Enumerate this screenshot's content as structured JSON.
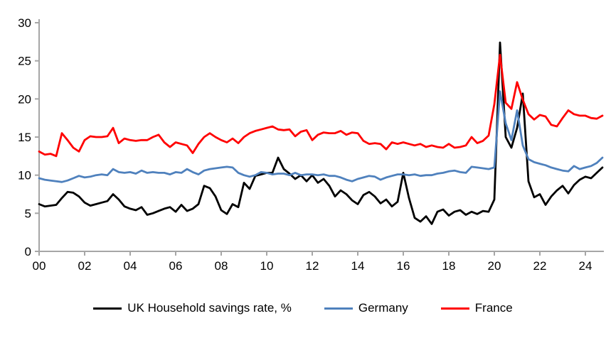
{
  "chart_data": {
    "type": "line",
    "title": "",
    "xlabel": "",
    "ylabel": "",
    "x_start": "2000Q1",
    "frequency": "quarterly",
    "ylim": [
      0,
      30
    ],
    "y_ticks": [
      "0",
      "5",
      "10",
      "15",
      "20",
      "25",
      "30"
    ],
    "x_tick_labels": [
      "00",
      "02",
      "04",
      "06",
      "08",
      "10",
      "12",
      "14",
      "16",
      "18",
      "20",
      "22",
      "24"
    ],
    "grid": false,
    "legend_position": "bottom",
    "axis_color": "#A6A6A6",
    "series": [
      {
        "name": "UK Household savings rate, %",
        "color": "#000000",
        "values": [
          6.2,
          5.9,
          6.0,
          6.1,
          7.0,
          7.8,
          7.7,
          7.2,
          6.4,
          6.0,
          6.2,
          6.4,
          6.6,
          7.5,
          6.8,
          5.9,
          5.6,
          5.4,
          5.8,
          4.8,
          5.0,
          5.3,
          5.6,
          5.8,
          5.2,
          6.1,
          5.3,
          5.6,
          6.2,
          8.6,
          8.3,
          7.2,
          5.4,
          4.9,
          6.2,
          5.8,
          9.0,
          8.2,
          9.9,
          10.1,
          10.3,
          10.3,
          12.3,
          10.8,
          10.2,
          9.5,
          10.0,
          9.2,
          10.0,
          9.0,
          9.5,
          8.6,
          7.2,
          8.0,
          7.5,
          6.7,
          6.2,
          7.4,
          7.8,
          7.2,
          6.3,
          6.8,
          5.9,
          6.5,
          10.3,
          7.0,
          4.4,
          3.9,
          4.6,
          3.6,
          5.2,
          5.5,
          4.7,
          5.2,
          5.4,
          4.8,
          5.2,
          4.9,
          5.3,
          5.2,
          6.8,
          27.4,
          15.0,
          13.6,
          16.2,
          20.7,
          9.2,
          7.1,
          7.5,
          6.1,
          7.2,
          8.0,
          8.6,
          7.6,
          8.7,
          9.4,
          9.8,
          9.6,
          10.3,
          11.0
        ]
      },
      {
        "name": "Germany",
        "color": "#4F81BD",
        "values": [
          9.6,
          9.4,
          9.3,
          9.2,
          9.1,
          9.3,
          9.6,
          9.9,
          9.7,
          9.8,
          10.0,
          10.1,
          10.0,
          10.8,
          10.4,
          10.3,
          10.4,
          10.2,
          10.6,
          10.3,
          10.4,
          10.3,
          10.3,
          10.1,
          10.4,
          10.3,
          10.8,
          10.4,
          10.1,
          10.6,
          10.8,
          10.9,
          11.0,
          11.1,
          11.0,
          10.3,
          10.0,
          9.8,
          10.0,
          10.4,
          10.3,
          10.1,
          10.2,
          10.2,
          10.0,
          10.3,
          10.0,
          10.1,
          10.1,
          10.0,
          10.1,
          9.9,
          9.9,
          9.7,
          9.4,
          9.2,
          9.5,
          9.7,
          9.9,
          9.8,
          9.4,
          9.7,
          9.9,
          10.1,
          10.1,
          10.0,
          10.1,
          9.9,
          10.0,
          10.0,
          10.2,
          10.3,
          10.5,
          10.6,
          10.4,
          10.3,
          11.1,
          11.0,
          10.9,
          10.8,
          11.0,
          21.0,
          16.8,
          14.6,
          18.5,
          13.9,
          12.1,
          11.7,
          11.5,
          11.3,
          11.0,
          10.8,
          10.6,
          10.5,
          11.2,
          10.8,
          11.0,
          11.2,
          11.6,
          12.3
        ]
      },
      {
        "name": "France",
        "color": "#FF0000",
        "values": [
          13.1,
          12.7,
          12.8,
          12.5,
          15.5,
          14.6,
          13.6,
          13.1,
          14.6,
          15.1,
          15.0,
          15.0,
          15.1,
          16.2,
          14.2,
          14.8,
          14.6,
          14.5,
          14.6,
          14.6,
          15.0,
          15.3,
          14.3,
          13.7,
          14.3,
          14.1,
          13.9,
          12.9,
          14.1,
          15.0,
          15.5,
          15.0,
          14.6,
          14.3,
          14.8,
          14.2,
          15.0,
          15.5,
          15.8,
          16.0,
          16.2,
          16.4,
          16.0,
          15.9,
          16.0,
          15.1,
          15.7,
          15.9,
          14.6,
          15.3,
          15.6,
          15.5,
          15.5,
          15.8,
          15.3,
          15.6,
          15.5,
          14.5,
          14.1,
          14.2,
          14.1,
          13.4,
          14.3,
          14.1,
          14.3,
          14.1,
          13.9,
          14.1,
          13.7,
          13.9,
          13.7,
          13.6,
          14.1,
          13.6,
          13.7,
          13.9,
          15.0,
          14.2,
          14.5,
          15.2,
          19.3,
          25.8,
          19.5,
          18.7,
          22.2,
          19.9,
          18.0,
          17.3,
          17.9,
          17.7,
          16.6,
          16.4,
          17.5,
          18.5,
          18.0,
          17.8,
          17.8,
          17.5,
          17.4,
          17.8
        ]
      }
    ]
  }
}
